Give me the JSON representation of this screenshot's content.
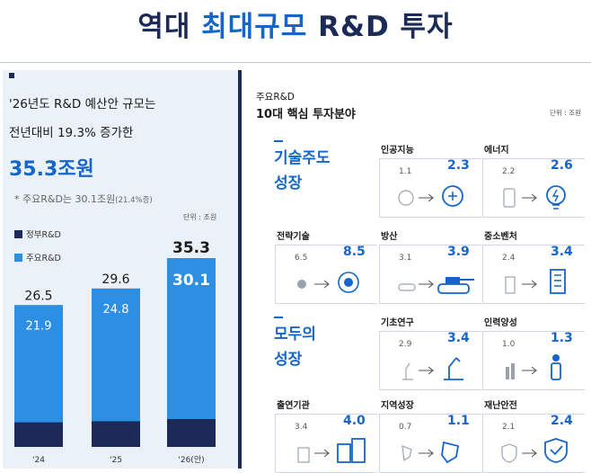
{
  "title": {
    "prefix": "역대",
    "highlight": "최대규모",
    "suffix": "R&D 투자"
  },
  "left": {
    "line1": "'26년도 R&D 예산안 규모는",
    "line2": "전년대비 19.3% 증가한",
    "total": "35.3조원",
    "note": "* 주요R&D는 30.1조원",
    "note_small": "(21.4%증)",
    "legend_gov": "정부R&D",
    "legend_main": "주요R&D",
    "unit": "단위 : 조원"
  },
  "chart_data": {
    "type": "bar",
    "categories": [
      "'24",
      "'25",
      "'26(안)"
    ],
    "series": [
      {
        "name": "정부R&D",
        "values": [
          26.5,
          29.6,
          35.3
        ]
      },
      {
        "name": "주요R&D",
        "values": [
          21.9,
          24.8,
          30.1
        ]
      }
    ],
    "title": "",
    "xlabel": "",
    "ylabel": "",
    "ylim": [
      0,
      36
    ],
    "colors": {
      "gov": "#1b2a57",
      "main": "#2c8fe3",
      "total_label": "#1a1a1a",
      "main_label": "#ffffff"
    }
  },
  "right": {
    "label_small": "주요R&D",
    "label_main": "10대 핵심 투자분야",
    "unit": "단위 : 조원",
    "group1": [
      "기술주도",
      "성장"
    ],
    "group2": [
      "모두의",
      "성장"
    ],
    "areas": [
      {
        "name": "인공지능",
        "old": "1.1",
        "new": "2.3",
        "icon": "ai-head-icon"
      },
      {
        "name": "에너지",
        "old": "2.2",
        "new": "2.6",
        "icon": "lightbulb-icon"
      },
      {
        "name": "전략기술",
        "old": "6.5",
        "new": "8.5",
        "icon": "touch-circuit-icon"
      },
      {
        "name": "방산",
        "old": "3.1",
        "new": "3.9",
        "icon": "tank-icon"
      },
      {
        "name": "중소벤처",
        "old": "2.4",
        "new": "3.4",
        "icon": "building-icon"
      },
      {
        "name": "기초연구",
        "old": "2.9",
        "new": "3.4",
        "icon": "microscope-icon"
      },
      {
        "name": "인력양성",
        "old": "1.0",
        "new": "1.3",
        "icon": "person-icon"
      },
      {
        "name": "출연기관",
        "old": "3.4",
        "new": "4.0",
        "icon": "office-icon"
      },
      {
        "name": "지역성장",
        "old": "0.7",
        "new": "1.1",
        "icon": "region-map-icon"
      },
      {
        "name": "재난안전",
        "old": "2.1",
        "new": "2.4",
        "icon": "shield-icon"
      }
    ]
  }
}
